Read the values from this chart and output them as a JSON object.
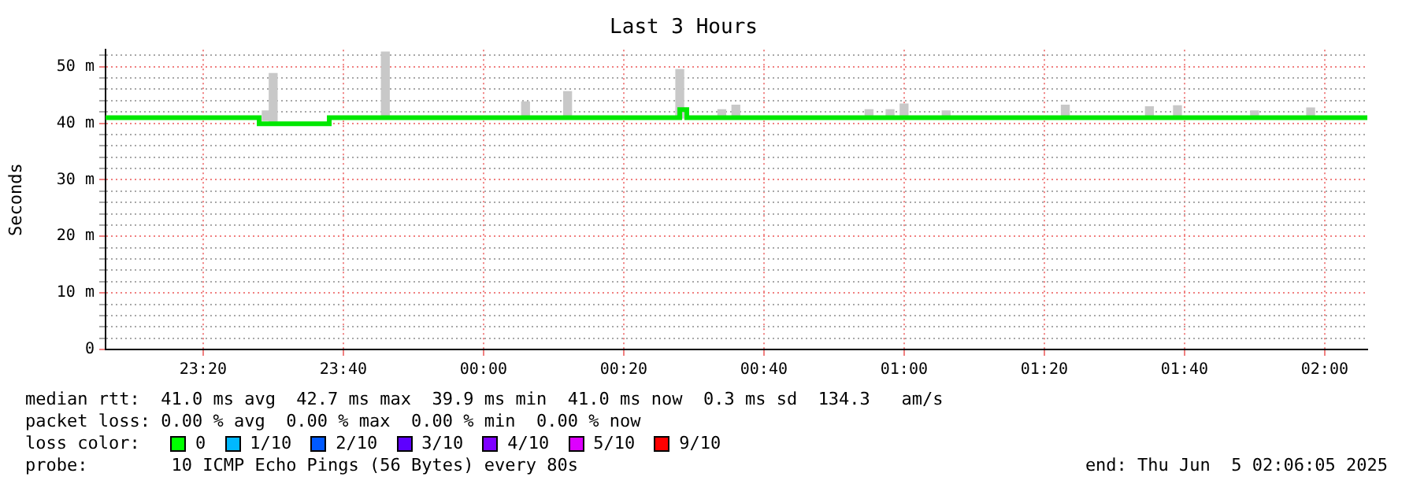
{
  "chart_data": {
    "type": "step",
    "title": "Last 3 Hours",
    "ylabel": "Seconds",
    "xlim": [
      "2025-06-04T23:06:05",
      "2025-06-05T02:06:05"
    ],
    "xticks": [
      {
        "value": "2025-06-04T23:20",
        "label": "23:20"
      },
      {
        "value": "2025-06-04T23:40",
        "label": "23:40"
      },
      {
        "value": "2025-06-05T00:00",
        "label": "00:00"
      },
      {
        "value": "2025-06-05T00:20",
        "label": "00:20"
      },
      {
        "value": "2025-06-05T00:40",
        "label": "00:40"
      },
      {
        "value": "2025-06-05T01:00",
        "label": "01:00"
      },
      {
        "value": "2025-06-05T01:20",
        "label": "01:20"
      },
      {
        "value": "2025-06-05T01:40",
        "label": "01:40"
      },
      {
        "value": "2025-06-05T02:00",
        "label": "02:00"
      }
    ],
    "ylim": [
      0,
      53
    ],
    "yticks": [
      0,
      {
        "value": 2,
        "label": null
      },
      {
        "value": 4,
        "label": null
      },
      {
        "value": 6,
        "label": null
      },
      {
        "value": 8,
        "label": null
      },
      {
        "value": 10,
        "label": "10 m"
      },
      {
        "value": 12,
        "label": null
      },
      {
        "value": 14,
        "label": null
      },
      {
        "value": 16,
        "label": null
      },
      {
        "value": 18,
        "label": null
      },
      {
        "value": 20,
        "label": "20 m"
      },
      {
        "value": 22,
        "label": null
      },
      {
        "value": 24,
        "label": null
      },
      {
        "value": 26,
        "label": null
      },
      {
        "value": 28,
        "label": null
      },
      {
        "value": 30,
        "label": "30 m"
      },
      {
        "value": 32,
        "label": null
      },
      {
        "value": 34,
        "label": null
      },
      {
        "value": 36,
        "label": null
      },
      {
        "value": 38,
        "label": null
      },
      {
        "value": 40,
        "label": "40 m"
      },
      {
        "value": 42,
        "label": null
      },
      {
        "value": 44,
        "label": null
      },
      {
        "value": 46,
        "label": null
      },
      {
        "value": 48,
        "label": null
      },
      {
        "value": 50,
        "label": "50 m"
      },
      {
        "value": 52,
        "label": null
      }
    ],
    "grid": true,
    "series": [
      {
        "type": "bar",
        "color": "#c8c8c8",
        "x": [
          "2025-06-04T23:29",
          "2025-06-04T23:30",
          "2025-06-04T23:46",
          "2025-06-05T00:06",
          "2025-06-05T00:12",
          "2025-06-05T00:28",
          "2025-06-05T00:34",
          "2025-06-05T00:36",
          "2025-06-05T00:55",
          "2025-06-05T00:58",
          "2025-06-05T01:00",
          "2025-06-05T01:06",
          "2025-06-05T01:23",
          "2025-06-05T01:35",
          "2025-06-05T01:39",
          "2025-06-05T01:50",
          "2025-06-05T01:58"
        ],
        "base": [
          40.5,
          40,
          40.9,
          40.9,
          40.9,
          40.9,
          40.9,
          40.9,
          40.9,
          40.9,
          40.9,
          40.9,
          40.9,
          40.9,
          40.9,
          40.9,
          40.9
        ],
        "values": [
          1.7,
          8.8,
          11.7,
          2.9,
          4.7,
          8.6,
          1.5,
          2.3,
          1.5,
          1.5,
          2.5,
          1.3,
          2.3,
          2,
          2.2,
          1.3,
          1.8
        ]
      },
      {
        "color": "#00e800",
        "x": [
          "2025-06-04T23:06:05",
          "2025-06-04T23:28",
          "2025-06-04T23:38",
          "2025-06-05T00:28",
          "2025-06-05T00:29",
          "2025-06-05T02:06:05"
        ],
        "values": [
          41,
          39.9,
          41,
          42.4,
          41,
          41
        ]
      }
    ],
    "annotations": [
      "median rtt:  41.0 ms avg  42.7 ms max  39.9 ms min  41.0 ms now  0.3 ms sd  134.3   am/s",
      "packet loss: 0.00 % avg  0.00 % max  0.00 % min  0.00 % now",
      "loss color:",
      "0",
      "1/10",
      "2/10",
      "3/10",
      "4/10",
      "5/10",
      "9/10",
      "probe:        10 ICMP Echo Pings (56 Bytes) every 80s",
      "end: Thu Jun  5 02:06:05 2025"
    ]
  }
}
